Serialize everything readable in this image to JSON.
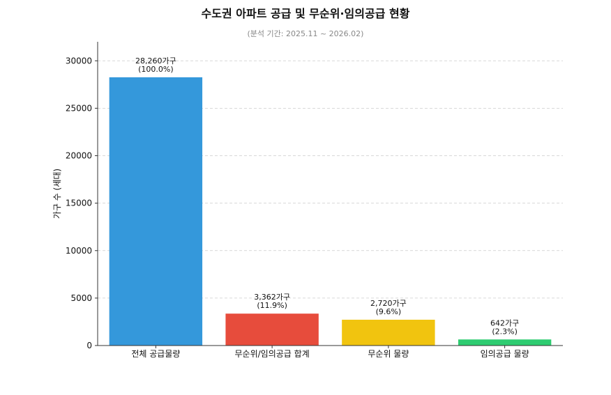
{
  "chart_data": {
    "type": "bar",
    "title": "수도권 아파트 공급 및 무순위·임의공급 현황",
    "subtitle": "(분석 기간: 2025.11 ~ 2026.02)",
    "xlabel": "",
    "ylabel": "가구 수 (세대)",
    "categories": [
      "전체 공급물량",
      "무순위/임의공급 합계",
      "무순위 물량",
      "임의공급 물량"
    ],
    "values": [
      28260,
      3362,
      2720,
      642
    ],
    "colors": [
      "#3498db",
      "#e74c3c",
      "#f1c40f",
      "#2ecc71"
    ],
    "data_labels": [
      [
        "28,260가구",
        "(100.0%)"
      ],
      [
        "3,362가구",
        "(11.9%)"
      ],
      [
        "2,720가구",
        "(9.6%)"
      ],
      [
        "642가구",
        "(2.3%)"
      ]
    ],
    "ylim": [
      0,
      32000
    ],
    "yticks": [
      0,
      5000,
      10000,
      15000,
      20000,
      25000,
      30000
    ],
    "grid": true,
    "grid_axis": "y"
  }
}
